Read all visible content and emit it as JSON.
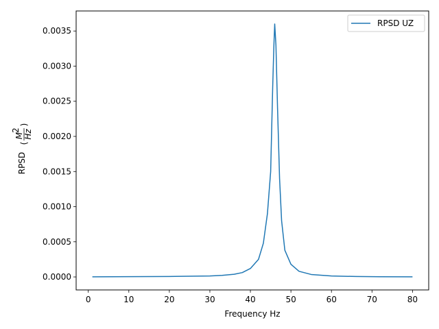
{
  "chart_data": {
    "type": "line",
    "xlabel": "Frequency Hz",
    "ylabel_prefix": "RPSD",
    "ylabel_units": {
      "numerator": "M",
      "exponent": "2",
      "denominator": "Hz"
    },
    "xlim": [
      -3,
      84
    ],
    "ylim": [
      -0.000185,
      0.003785
    ],
    "x_ticks": [
      0,
      10,
      20,
      30,
      40,
      50,
      60,
      70,
      80
    ],
    "x_tick_labels": [
      "0",
      "10",
      "20",
      "30",
      "40",
      "50",
      "60",
      "70",
      "80"
    ],
    "y_ticks": [
      0,
      0.0005,
      0.001,
      0.0015,
      0.002,
      0.0025,
      0.003,
      0.0035
    ],
    "y_tick_labels": [
      "0.0000",
      "0.0005",
      "0.0010",
      "0.0015",
      "0.0020",
      "0.0025",
      "0.0030",
      "0.0035"
    ],
    "grid": false,
    "legend_position": "top-right",
    "series": [
      {
        "name": "RPSD UZ",
        "color": "#1f77b4",
        "x": [
          1,
          10,
          20,
          30,
          33,
          36,
          38,
          40,
          42,
          43.2,
          44.2,
          45,
          45.5,
          45.8,
          46,
          46.3,
          46.7,
          47.2,
          47.7,
          48.5,
          50,
          52,
          55,
          60,
          66,
          72,
          80
        ],
        "y": [
          2e-06,
          4e-06,
          7e-06,
          1.4e-05,
          2.2e-05,
          3.8e-05,
          6.2e-05,
          0.00012,
          0.00025,
          0.00048,
          0.0009,
          0.0015,
          0.0027,
          0.0033,
          0.0036,
          0.0033,
          0.0024,
          0.0014,
          0.0008,
          0.00038,
          0.00018,
          8e-05,
          3.5e-05,
          1.4e-05,
          6e-06,
          3e-06,
          1e-06
        ]
      }
    ]
  }
}
